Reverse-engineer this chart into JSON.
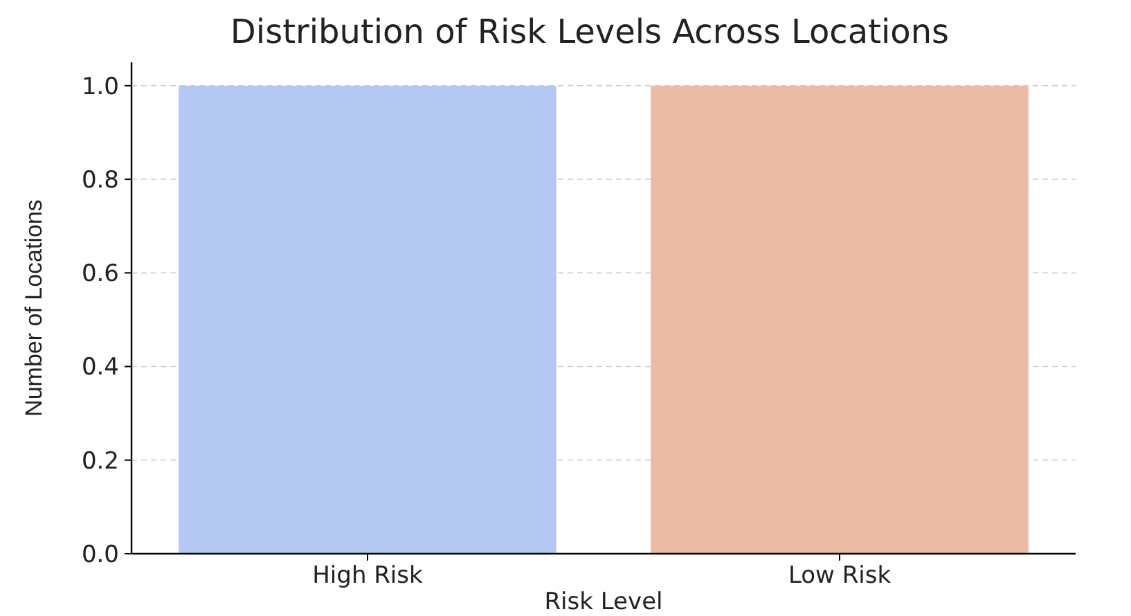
{
  "chart_data": {
    "type": "bar",
    "title": "Distribution of Risk Levels Across Locations",
    "xlabel": "Risk Level",
    "ylabel": "Number of Locations",
    "categories": [
      "High Risk",
      "Low Risk"
    ],
    "values": [
      1.0,
      1.0
    ],
    "colors": [
      "#b4c8f2",
      "#ebbba3"
    ],
    "ylim": [
      0,
      1.05
    ],
    "yticks": [
      {
        "value": 0,
        "label": "0.0"
      },
      {
        "value": 0.2,
        "label": "0.2"
      },
      {
        "value": 0.4,
        "label": "0.4"
      },
      {
        "value": 0.6,
        "label": "0.6"
      },
      {
        "value": 0.8,
        "label": "0.8"
      },
      {
        "value": 1,
        "label": "1.0"
      }
    ],
    "grid": "y"
  }
}
